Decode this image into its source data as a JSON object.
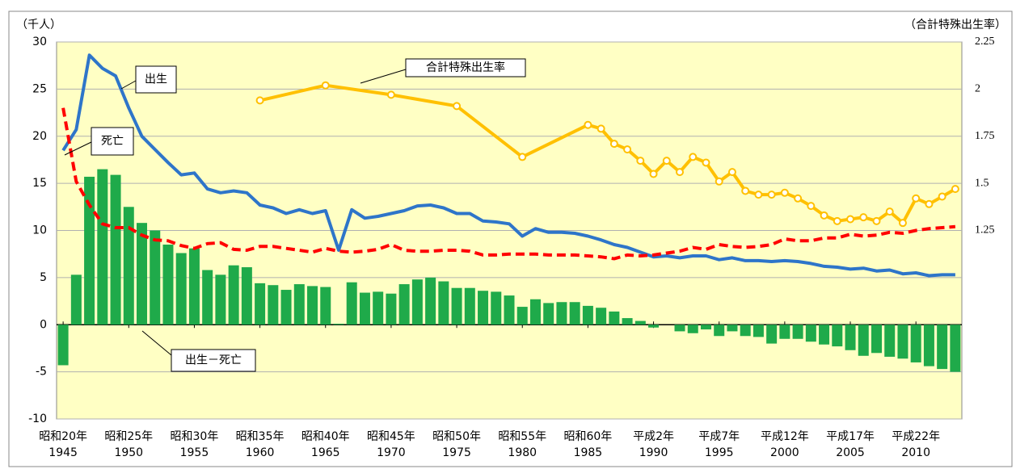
{
  "chart_data": {
    "type": "bar-line",
    "y_label": "（千人）",
    "y2_label": "（合計特殊出生率）",
    "x": [
      1945,
      1946,
      1947,
      1948,
      1949,
      1950,
      1951,
      1952,
      1953,
      1954,
      1955,
      1956,
      1957,
      1958,
      1959,
      1960,
      1961,
      1962,
      1963,
      1964,
      1965,
      1966,
      1967,
      1968,
      1969,
      1970,
      1971,
      1972,
      1973,
      1974,
      1975,
      1976,
      1977,
      1978,
      1979,
      1980,
      1981,
      1982,
      1983,
      1984,
      1985,
      1986,
      1987,
      1988,
      1989,
      1990,
      1991,
      1992,
      1993,
      1994,
      1995,
      1996,
      1997,
      1998,
      1999,
      2000,
      2001,
      2002,
      2003,
      2004,
      2005,
      2006,
      2007,
      2008,
      2009,
      2010,
      2011,
      2012,
      2013
    ],
    "xlim": [
      1944.5,
      2013.5
    ],
    "xticks": [
      1945,
      1950,
      1955,
      1960,
      1965,
      1970,
      1975,
      1980,
      1985,
      1990,
      1995,
      2000,
      2005,
      2010
    ],
    "xtick_era_labels": [
      "昭和20年",
      "昭和25年",
      "昭和30年",
      "昭和35年",
      "昭和40年",
      "昭和45年",
      "昭和50年",
      "昭和55年",
      "昭和60年",
      "平成2年",
      "平成7年",
      "平成12年",
      "平成17年",
      "平成22年"
    ],
    "ylim": [
      -10,
      30
    ],
    "yticks": [
      -10,
      -5,
      0,
      5,
      10,
      15,
      20,
      25,
      30
    ],
    "y2lim": [
      0.25,
      2.25
    ],
    "y2ticks": [
      1.25,
      1.5,
      1.75,
      2,
      2.25
    ],
    "grid": true,
    "series": [
      {
        "name": "出生－死亡",
        "type": "bar",
        "color": "#1faa4a",
        "values": [
          -4.3,
          5.3,
          15.7,
          16.5,
          15.9,
          12.5,
          10.8,
          10.0,
          8.5,
          7.6,
          8.1,
          5.8,
          5.3,
          6.3,
          6.1,
          4.4,
          4.2,
          3.7,
          4.3,
          4.1,
          4.0,
          0.1,
          4.5,
          3.4,
          3.5,
          3.3,
          4.3,
          4.8,
          5.0,
          4.6,
          3.9,
          3.9,
          3.6,
          3.5,
          3.1,
          1.9,
          2.7,
          2.3,
          2.4,
          2.4,
          2.0,
          1.8,
          1.4,
          0.7,
          0.4,
          -0.3,
          0.0,
          -0.7,
          -0.9,
          -0.5,
          -1.2,
          -0.7,
          -1.2,
          -1.3,
          -2.0,
          -1.5,
          -1.5,
          -1.8,
          -2.1,
          -2.3,
          -2.7,
          -3.3,
          -3.0,
          -3.4,
          -3.6,
          -4.0,
          -4.4,
          -4.7,
          -5.0
        ]
      },
      {
        "name": "出生",
        "type": "line",
        "color": "#2e75c9",
        "values": [
          18.5,
          20.7,
          28.6,
          27.2,
          26.4,
          23.0,
          20.0,
          18.6,
          17.2,
          15.9,
          16.1,
          14.4,
          14.0,
          14.2,
          14.0,
          12.7,
          12.4,
          11.8,
          12.2,
          11.8,
          12.1,
          7.9,
          12.2,
          11.3,
          11.5,
          11.8,
          12.1,
          12.6,
          12.7,
          12.4,
          11.8,
          11.8,
          11.0,
          10.9,
          10.7,
          9.4,
          10.2,
          9.8,
          9.8,
          9.7,
          9.4,
          9.0,
          8.5,
          8.2,
          7.7,
          7.2,
          7.3,
          7.1,
          7.3,
          7.3,
          6.9,
          7.1,
          6.8,
          6.8,
          6.7,
          6.8,
          6.7,
          6.5,
          6.2,
          6.1,
          5.9,
          6.0,
          5.7,
          5.8,
          5.4,
          5.5,
          5.2,
          5.3,
          5.3
        ]
      },
      {
        "name": "死亡",
        "type": "dashed",
        "color": "#ff0000",
        "values": [
          23.0,
          15.2,
          12.7,
          10.7,
          10.3,
          10.3,
          9.5,
          9.0,
          8.9,
          8.4,
          8.1,
          8.6,
          8.7,
          8.0,
          7.9,
          8.3,
          8.3,
          8.1,
          7.9,
          7.7,
          8.1,
          7.8,
          7.7,
          7.8,
          8.0,
          8.5,
          7.9,
          7.8,
          7.8,
          7.9,
          7.9,
          7.8,
          7.4,
          7.4,
          7.5,
          7.5,
          7.5,
          7.4,
          7.4,
          7.4,
          7.3,
          7.2,
          7.0,
          7.4,
          7.3,
          7.4,
          7.6,
          7.8,
          8.2,
          8.0,
          8.5,
          8.3,
          8.2,
          8.3,
          8.5,
          9.1,
          8.9,
          8.9,
          9.2,
          9.2,
          9.6,
          9.4,
          9.5,
          9.8,
          9.7,
          10.0,
          10.2,
          10.3,
          10.4
        ]
      },
      {
        "name": "合計特殊出生率",
        "type": "marker-line",
        "color": "#ffc000",
        "axis": "y2",
        "x": [
          1960,
          1965,
          1970,
          1975,
          1980,
          1985,
          1986,
          1987,
          1988,
          1989,
          1990,
          1991,
          1992,
          1993,
          1994,
          1995,
          1996,
          1997,
          1998,
          1999,
          2000,
          2001,
          2002,
          2003,
          2004,
          2005,
          2006,
          2007,
          2008,
          2009,
          2010,
          2011,
          2012,
          2013
        ],
        "values": [
          1.94,
          2.02,
          1.97,
          1.91,
          1.64,
          1.81,
          1.79,
          1.71,
          1.68,
          1.62,
          1.55,
          1.62,
          1.56,
          1.64,
          1.61,
          1.51,
          1.56,
          1.46,
          1.44,
          1.44,
          1.45,
          1.42,
          1.38,
          1.33,
          1.3,
          1.31,
          1.32,
          1.3,
          1.35,
          1.29,
          1.42,
          1.39,
          1.43,
          1.47
        ]
      }
    ]
  }
}
